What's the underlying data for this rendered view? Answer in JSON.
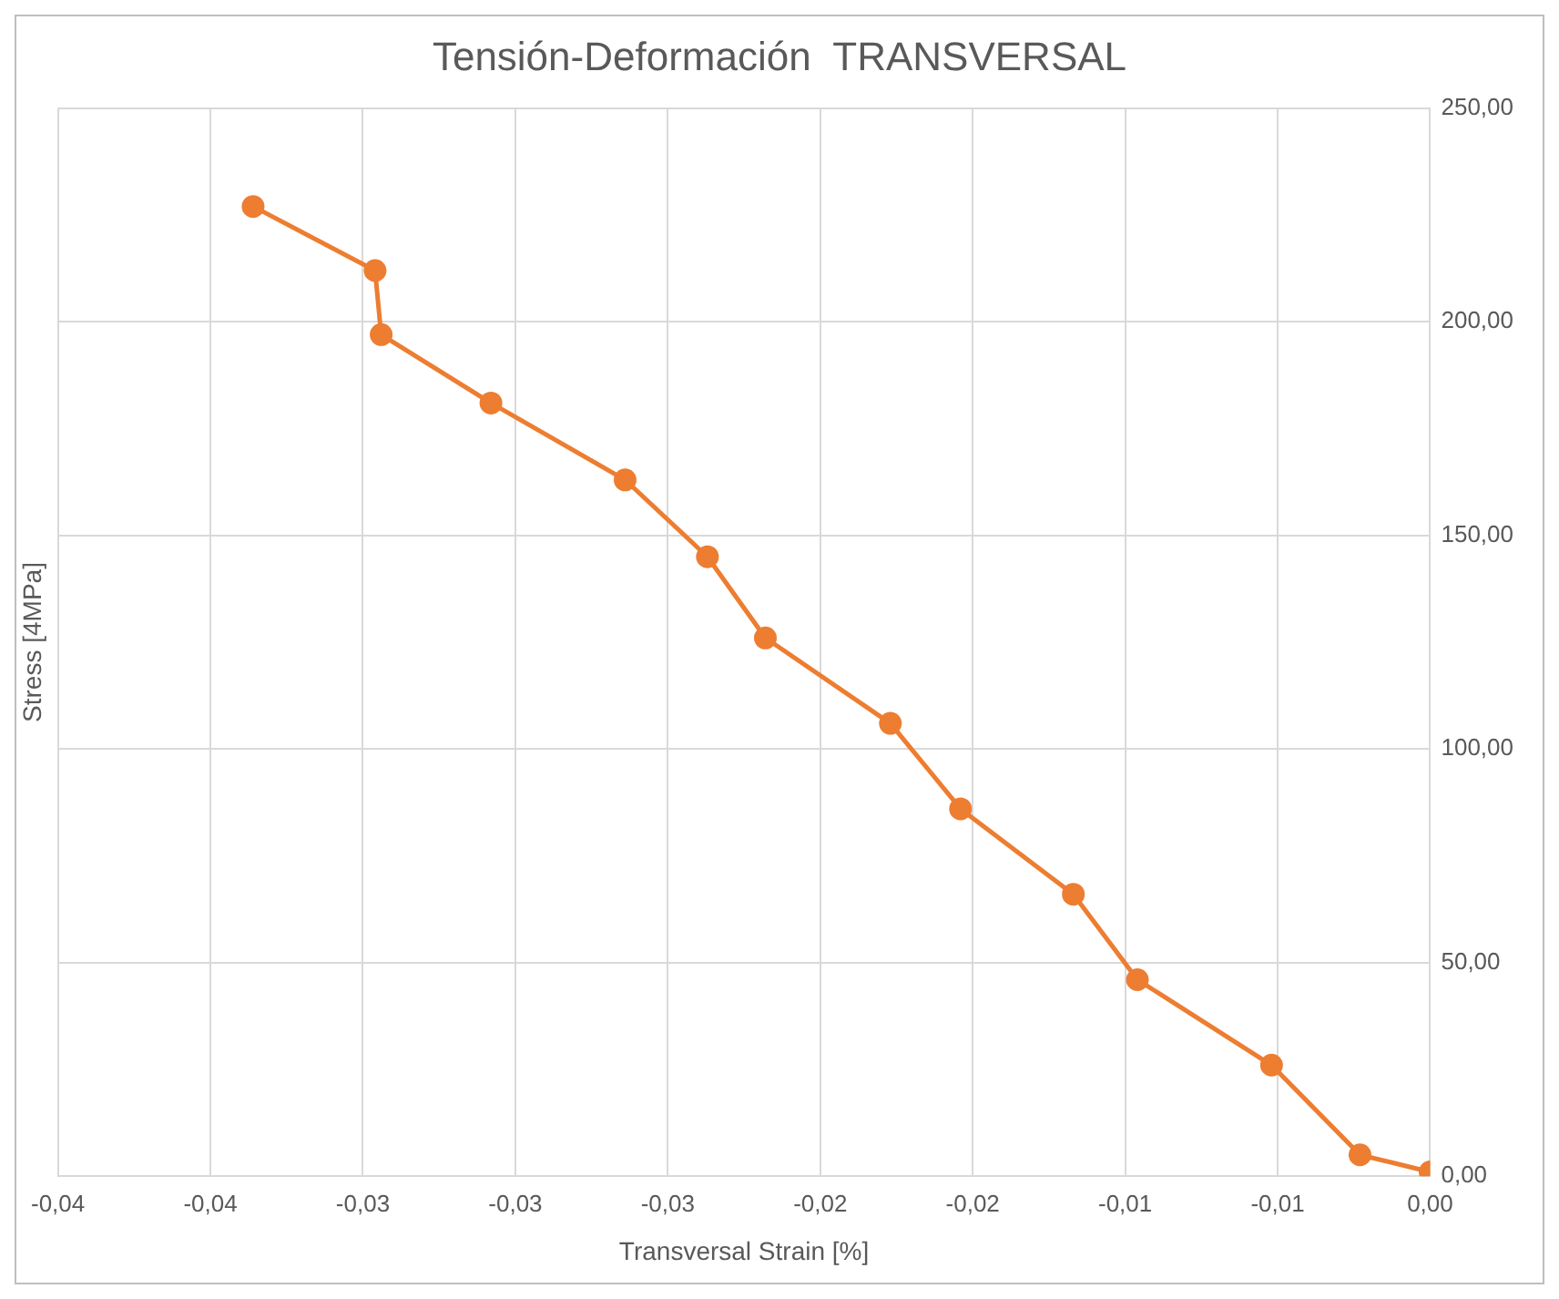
{
  "chart_data": {
    "type": "line",
    "title": "Tensión-Deformación  TRANSVERSAL",
    "xlabel": "Transversal Strain [%]",
    "ylabel": "Stress [4MPa]",
    "x": [
      -0.0386,
      -0.0346,
      -0.0344,
      -0.0308,
      -0.0264,
      -0.0237,
      -0.0218,
      -0.0177,
      -0.0154,
      -0.0117,
      -0.0096,
      -0.0052,
      -0.0023,
      0
    ],
    "series": [
      {
        "color": "#ed7d31",
        "values": [
          227,
          212,
          197,
          181,
          163,
          145,
          126,
          106,
          86,
          66,
          46,
          26,
          5,
          1
        ]
      }
    ],
    "xlim": [
      -0.045,
      0
    ],
    "xticks": [
      {
        "value": -0.045,
        "label": "-0,04"
      },
      {
        "value": -0.04,
        "label": "-0,04"
      },
      {
        "value": -0.035,
        "label": "-0,03"
      },
      {
        "value": -0.03,
        "label": "-0,03"
      },
      {
        "value": -0.025,
        "label": "-0,03"
      },
      {
        "value": -0.02,
        "label": "-0,02"
      },
      {
        "value": -0.015,
        "label": "-0,02"
      },
      {
        "value": -0.01,
        "label": "-0,01"
      },
      {
        "value": -0.005,
        "label": "-0,01"
      },
      {
        "value": 0,
        "label": "0,00"
      }
    ],
    "ylim": [
      0,
      250
    ],
    "yticks": [
      {
        "value": 0,
        "label": "0,00"
      },
      {
        "value": 50,
        "label": "50,00"
      },
      {
        "value": 100,
        "label": "100,00"
      },
      {
        "value": 150,
        "label": "150,00"
      },
      {
        "value": 200,
        "label": "200,00"
      },
      {
        "value": 250,
        "label": "250,00"
      }
    ],
    "grid": true,
    "legend": false,
    "marker": "circle",
    "line_style": "solid"
  }
}
